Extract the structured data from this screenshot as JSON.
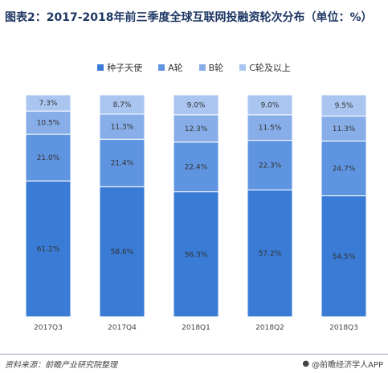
{
  "title": "图表2：2017-2018年前三季度全球互联网投融资轮次分布（单位：%）",
  "source": "资料来源：前瞻产业研究院整理",
  "brand": "@前瞻经济学人APP",
  "chart_data": {
    "type": "bar",
    "stacked": true,
    "categories": [
      "2017Q3",
      "2017Q4",
      "2018Q1",
      "2018Q2",
      "2018Q3"
    ],
    "series": [
      {
        "name": "种子天使",
        "color": "#3a7bd5",
        "values": [
          61.2,
          58.6,
          56.3,
          57.2,
          54.5
        ],
        "labels": [
          "61.2%",
          "58.6%",
          "56.3%",
          "57.2%",
          "54.5%"
        ]
      },
      {
        "name": "A轮",
        "color": "#5f95e0",
        "values": [
          21.0,
          21.4,
          22.4,
          22.3,
          24.7
        ],
        "labels": [
          "21.0%",
          "21.4%",
          "22.4%",
          "22.3%",
          "24.7%"
        ]
      },
      {
        "name": "B轮",
        "color": "#87aee8",
        "values": [
          10.5,
          11.3,
          12.3,
          11.5,
          11.3
        ],
        "labels": [
          "10.5%",
          "11.3%",
          "12.3%",
          "11.5%",
          "11.3%"
        ]
      },
      {
        "name": "C轮及以上",
        "color": "#a9c5f0",
        "values": [
          7.3,
          8.7,
          9.0,
          9.0,
          9.5
        ],
        "labels": [
          "7.3%",
          "8.7%",
          "9.0%",
          "9.0%",
          "9.5%"
        ]
      }
    ],
    "legend_position": "top",
    "grid": false,
    "ylim": [
      0,
      100
    ]
  }
}
